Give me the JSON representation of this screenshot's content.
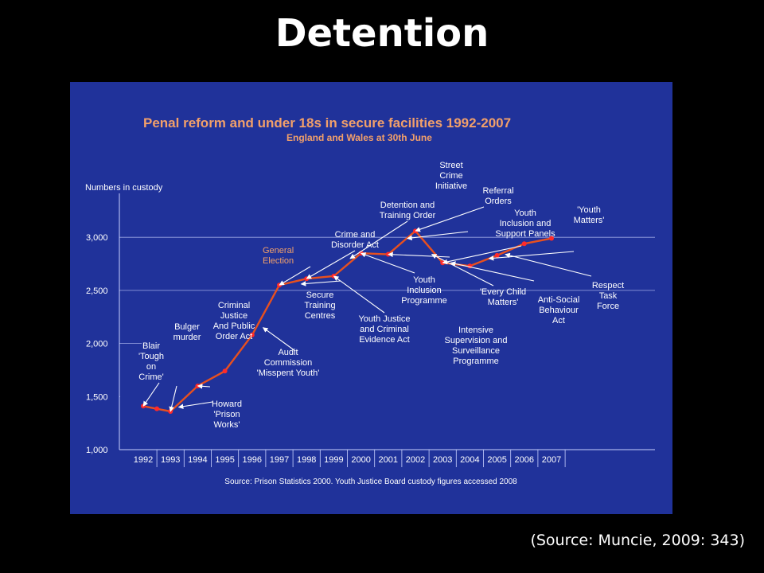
{
  "slide": {
    "title": "Detention",
    "source": "(Source: Muncie, 2009: 343)"
  },
  "colors": {
    "background": "#000000",
    "panel": "#20329a",
    "chart_title": "#f2a06a",
    "line": "#e8501e",
    "point": "#ff2a2a",
    "text": "#ffffff",
    "axis": "#c8d0ff"
  },
  "chart_data": {
    "type": "line",
    "title": "Penal reform and under 18s in secure facilities 1992-2007",
    "subtitle": "England and Wales at 30th June",
    "ylabel": "Numbers in custody",
    "xlabel": "",
    "ylim": [
      1000,
      3300
    ],
    "yticks": [
      1000,
      1500,
      2000,
      2500,
      3000
    ],
    "ytick_labels": [
      "1,000",
      "1,500",
      "2,000",
      "2,500",
      "3,000"
    ],
    "categories": [
      "1992",
      "1993",
      "1994",
      "1995",
      "1996",
      "1997",
      "1998",
      "1999",
      "2000",
      "2001",
      "2002",
      "2003",
      "2004",
      "2005",
      "2006",
      "2007"
    ],
    "x": [
      1992,
      1992.5,
      1993,
      1994,
      1995,
      1996,
      1997,
      1998,
      1999,
      2000,
      2001,
      2002,
      2003,
      2004,
      2005,
      2006,
      2007
    ],
    "values": [
      1410,
      1385,
      1360,
      1600,
      1740,
      2080,
      2550,
      2610,
      2635,
      2850,
      2840,
      3060,
      2760,
      2730,
      2830,
      2940,
      2990
    ],
    "grid": "horizontal reference lines at 1,500, 2,000, 2,500 and 3,000",
    "note": "Source: Prison Statistics 2000. Youth Justice Board custody figures accessed 2008",
    "annotations": [
      {
        "lines": [
          "Blair",
          "'Tough",
          "on",
          "Crime'"
        ],
        "x": 1992.0,
        "y": 1410
      },
      {
        "lines": [
          "Bulger",
          "murder"
        ],
        "x": 1993.0,
        "y": 1360
      },
      {
        "lines": [
          "Criminal",
          "Justice",
          "And Public",
          "Order Act"
        ],
        "x": 1994.0,
        "y": 1600
      },
      {
        "lines": [
          "Howard",
          "'Prison",
          "Works'"
        ],
        "x": 1993.3,
        "y": 1400
      },
      {
        "lines": [
          "Audit",
          "Commission",
          "'Misspent Youth'"
        ],
        "x": 1996.4,
        "y": 2150
      },
      {
        "lines": [
          "General",
          "Election"
        ],
        "x": 1997.0,
        "y": 2550
      },
      {
        "lines": [
          "Secure",
          "Training",
          "Centres"
        ],
        "x": 1997.8,
        "y": 2560
      },
      {
        "lines": [
          "Crime and",
          "Disorder Act"
        ],
        "x": 1998.0,
        "y": 2610
      },
      {
        "lines": [
          "Youth Justice",
          "and Criminal",
          "Evidence Act"
        ],
        "x": 1999.0,
        "y": 2635
      },
      {
        "lines": [
          "Detention and",
          "Training Order"
        ],
        "x": 1999.6,
        "y": 2800
      },
      {
        "lines": [
          "Youth",
          "Inclusion",
          "Programme"
        ],
        "x": 2000.0,
        "y": 2850
      },
      {
        "lines": [
          "Intensive",
          "Supervision and",
          "Surveillance",
          "Programme"
        ],
        "x": 2001.0,
        "y": 2840
      },
      {
        "lines": [
          "Street",
          "Crime",
          "Initiative"
        ],
        "x": 2001.7,
        "y": 2990
      },
      {
        "lines": [
          "Referral",
          "Orders"
        ],
        "x": 2002.0,
        "y": 3060
      },
      {
        "lines": [
          "'Every Child",
          "Matters'"
        ],
        "x": 2002.6,
        "y": 2840
      },
      {
        "lines": [
          "Youth",
          "Inclusion and",
          "Support Panels"
        ],
        "x": 2003.0,
        "y": 2760
      },
      {
        "lines": [
          "Anti-Social",
          "Behaviour",
          "Act"
        ],
        "x": 2003.3,
        "y": 2760
      },
      {
        "lines": [
          "'Youth",
          "Matters'"
        ],
        "x": 2004.7,
        "y": 2800
      },
      {
        "lines": [
          "Respect",
          "Task",
          "Force"
        ],
        "x": 2005.3,
        "y": 2840
      }
    ]
  }
}
